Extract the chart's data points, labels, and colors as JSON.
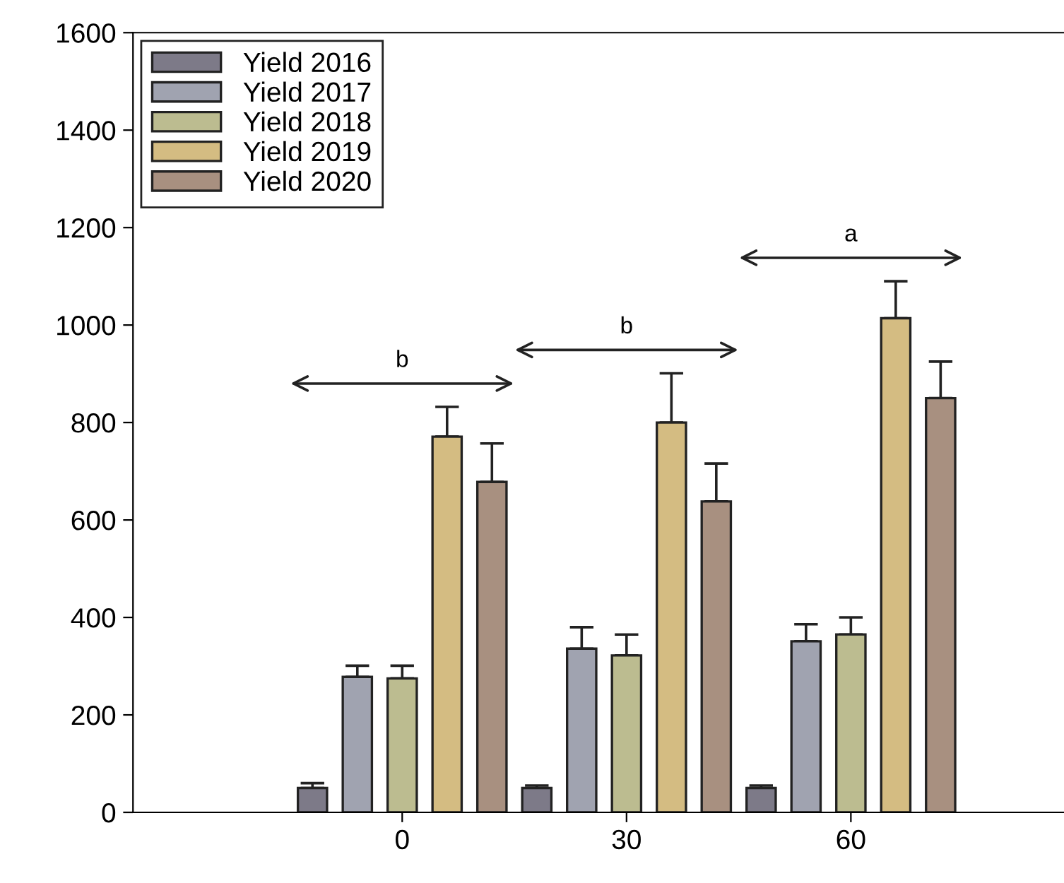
{
  "chart_data": {
    "type": "bar",
    "categories": [
      "0",
      "30",
      "60"
    ],
    "series": [
      {
        "name": "Yield 2016",
        "color": "#7d7a88",
        "values": [
          50,
          50,
          50
        ],
        "errors": [
          10,
          5,
          5
        ]
      },
      {
        "name": "Yield 2017",
        "color": "#a0a3b0",
        "values": [
          278,
          336,
          351
        ],
        "errors": [
          23,
          44,
          35
        ]
      },
      {
        "name": "Yield 2018",
        "color": "#bcbc90",
        "values": [
          275,
          322,
          365
        ],
        "errors": [
          26,
          43,
          35
        ]
      },
      {
        "name": "Yield 2019",
        "color": "#d4bc82",
        "values": [
          771,
          800,
          1014
        ],
        "errors": [
          61,
          101,
          76
        ]
      },
      {
        "name": "Yield 2020",
        "color": "#a89080",
        "values": [
          678,
          638,
          850
        ],
        "errors": [
          79,
          78,
          75
        ]
      }
    ],
    "ylim": [
      0,
      1600
    ],
    "yticks": [
      0,
      200,
      400,
      600,
      800,
      1000,
      1200,
      1400,
      1600
    ],
    "annotations": [
      "b",
      "b",
      "a"
    ],
    "legend": "top left",
    "grid": false
  }
}
